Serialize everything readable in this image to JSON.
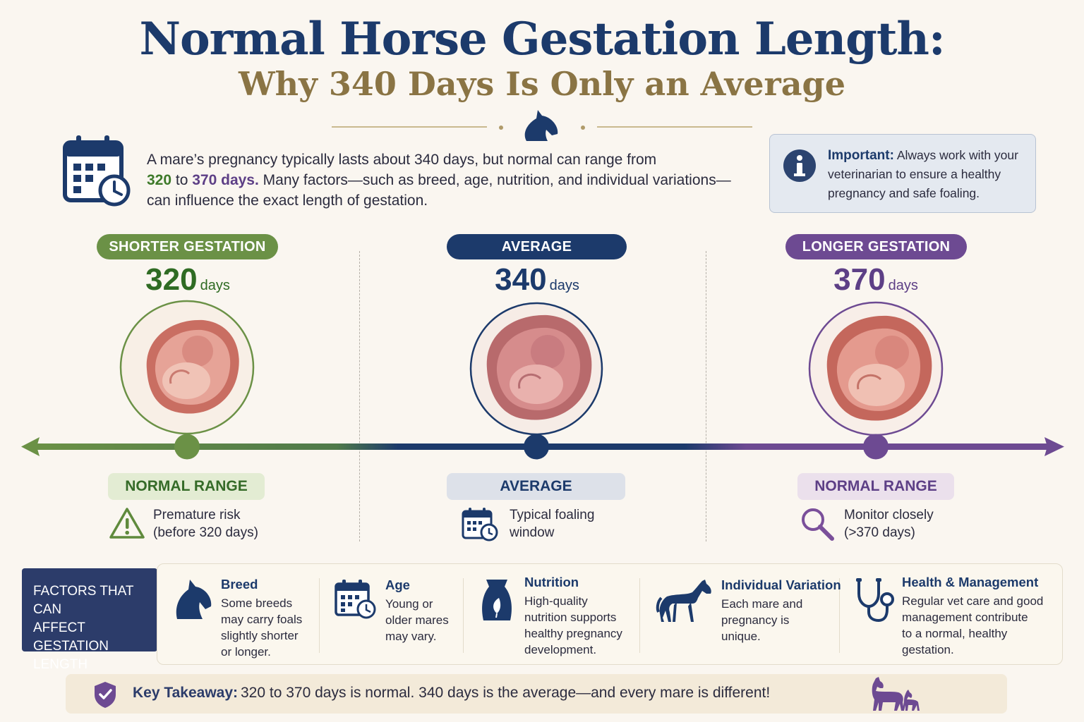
{
  "title": "Normal Horse Gestation Length:",
  "subtitle": "Why 340 Days Is Only an Average",
  "intro": {
    "part1": "A mare’s pregnancy typically lasts about 340 days, but normal can range from",
    "range_start": "320",
    "to_word": "to",
    "range_end": "370 days.",
    "part2": "Many factors—such as breed, age, nutrition, and individual variations—can influence the exact length of gestation."
  },
  "important": {
    "label": "Important:",
    "text": "Always work with your veterinarian to ensure a healthy pregnancy and safe foaling."
  },
  "columns": [
    {
      "pill": "SHORTER GESTATION",
      "days": "320",
      "unit": "days",
      "range_label": "NORMAL RANGE",
      "note_line1": "Premature risk",
      "note_line2": "(before 320 days)",
      "icon": "warning-icon"
    },
    {
      "pill": "AVERAGE",
      "days": "340",
      "unit": "days",
      "range_label": "AVERAGE",
      "note_line1": "Typical foaling",
      "note_line2": "window",
      "icon": "calendar-icon"
    },
    {
      "pill": "LONGER GESTATION",
      "days": "370",
      "unit": "days",
      "range_label": "NORMAL RANGE",
      "note_line1": "Monitor closely",
      "note_line2": "(>370 days)",
      "icon": "magnifier-icon"
    }
  ],
  "factors": {
    "label_line1": "FACTORS THAT CAN",
    "label_line2": "AFFECT GESTATION",
    "label_line3": "LENGTH",
    "items": [
      {
        "title": "Breed",
        "l1": "Some breeds",
        "l2": "may carry foals",
        "l3": "slightly shorter",
        "l4": "or longer.",
        "icon": "horse-head-icon"
      },
      {
        "title": "Age",
        "l1": "Young or",
        "l2": "older mares",
        "l3": "may vary.",
        "l4": "",
        "icon": "calendar-icon"
      },
      {
        "title": "Nutrition",
        "l1": "High-quality",
        "l2": "nutrition supports",
        "l3": "healthy pregnancy",
        "l4": "development.",
        "icon": "feed-bag-icon"
      },
      {
        "title": "Individual Variation",
        "l1": "Each mare and",
        "l2": "pregnancy is",
        "l3": "unique.",
        "l4": "",
        "icon": "horse-icon"
      },
      {
        "title": "Health & Management",
        "l1": "Regular vet care and good",
        "l2": "management contribute",
        "l3": "to a normal, healthy",
        "l4": "gestation.",
        "icon": "stethoscope-icon"
      }
    ]
  },
  "takeaway": {
    "label": "Key Takeaway:",
    "text": "320 to 370 days is normal. 340 days is the average—and every mare is different!"
  },
  "colors": {
    "navy": "#1c3a6b",
    "green": "#6b9146",
    "purple": "#6d4a92",
    "gold": "#8a7444"
  }
}
